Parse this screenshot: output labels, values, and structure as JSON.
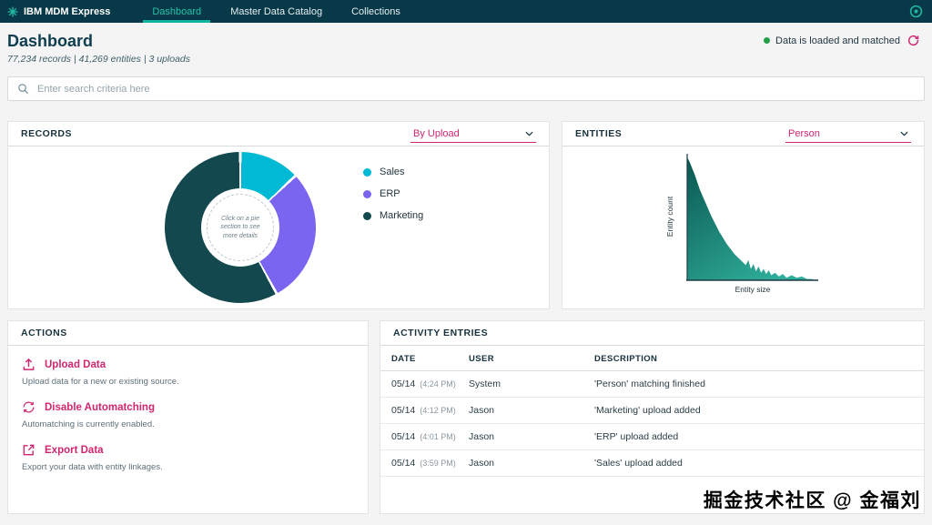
{
  "colors": {
    "navbar_bg": "#073948",
    "accent_teal": "#0fb59d",
    "accent_magenta": "#d02670",
    "status_green": "#24a148"
  },
  "navbar": {
    "brand": "IBM MDM Express",
    "items": [
      {
        "label": "Dashboard"
      },
      {
        "label": "Master Data Catalog"
      },
      {
        "label": "Collections"
      }
    ]
  },
  "header": {
    "title": "Dashboard",
    "stats": "77,234 records  |  41,269 entities  |  3 uploads",
    "status_text": "Data is loaded and matched",
    "status_color": "#24a148"
  },
  "search": {
    "placeholder": "Enter search criteria here"
  },
  "records_card": {
    "title": "RECORDS",
    "dropdown_value": "By Upload",
    "center_text": "Click on a pie section to see more details",
    "chart_data": {
      "type": "pie",
      "segments": [
        {
          "label": "Sales",
          "color": "#00b9d4",
          "value": 13
        },
        {
          "label": "ERP",
          "color": "#7a65f0",
          "value": 29
        },
        {
          "label": "Marketing",
          "color": "#12484e",
          "value": 58
        }
      ]
    }
  },
  "entities_card": {
    "title": "ENTITIES",
    "dropdown_value": "Person",
    "chart_data": {
      "type": "area",
      "xlabel": "Entity size",
      "ylabel": "Entity count",
      "color_top": "#0a574f",
      "color_bottom": "#2fae9b",
      "points": [
        [
          0,
          98
        ],
        [
          2,
          94
        ],
        [
          4,
          89
        ],
        [
          6,
          84
        ],
        [
          8,
          78
        ],
        [
          10,
          72
        ],
        [
          13,
          65
        ],
        [
          16,
          58
        ],
        [
          19,
          51
        ],
        [
          22,
          45
        ],
        [
          25,
          39
        ],
        [
          28,
          34
        ],
        [
          31,
          29
        ],
        [
          34,
          25
        ],
        [
          37,
          21
        ],
        [
          40,
          18
        ],
        [
          43,
          15
        ],
        [
          46,
          12
        ],
        [
          48,
          16
        ],
        [
          50,
          9
        ],
        [
          52,
          13
        ],
        [
          54,
          7
        ],
        [
          56,
          11
        ],
        [
          58,
          6
        ],
        [
          60,
          9
        ],
        [
          62,
          5
        ],
        [
          64,
          8
        ],
        [
          66,
          4
        ],
        [
          69,
          6
        ],
        [
          72,
          3
        ],
        [
          75,
          5
        ],
        [
          78,
          2
        ],
        [
          82,
          4
        ],
        [
          86,
          2
        ],
        [
          90,
          3
        ],
        [
          94,
          1
        ],
        [
          98,
          1
        ]
      ]
    }
  },
  "actions_card": {
    "title": "ACTIONS",
    "items": [
      {
        "label": "Upload Data",
        "description": "Upload data for a new or existing source."
      },
      {
        "label": "Disable Automatching",
        "description": "Automatching is currently enabled."
      },
      {
        "label": "Export Data",
        "description": "Export your data with entity linkages."
      }
    ]
  },
  "activity_card": {
    "title": "ACTIVITY ENTRIES",
    "columns": [
      "DATE",
      "USER",
      "DESCRIPTION"
    ],
    "rows": [
      {
        "date": "05/14",
        "time": "(4:24 PM)",
        "user": "System",
        "description": "'Person' matching finished"
      },
      {
        "date": "05/14",
        "time": "(4:12 PM)",
        "user": "Jason",
        "description": "'Marketing' upload added"
      },
      {
        "date": "05/14",
        "time": "(4:01 PM)",
        "user": "Jason",
        "description": "'ERP' upload added"
      },
      {
        "date": "05/14",
        "time": "(3:59 PM)",
        "user": "Jason",
        "description": "'Sales' upload added"
      }
    ]
  },
  "watermark": {
    "text": "掘金技术社区 @ 金福刘"
  }
}
